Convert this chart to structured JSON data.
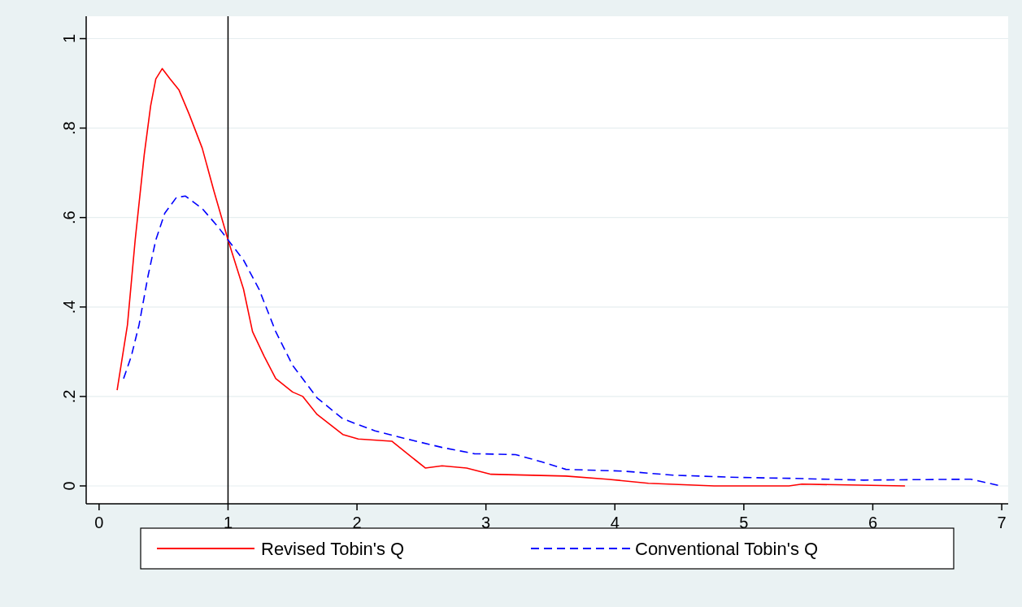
{
  "chart_data": {
    "type": "line",
    "xlim": [
      -0.1,
      7.05
    ],
    "xticks": [
      0,
      1,
      2,
      3,
      4,
      5,
      6,
      7
    ],
    "ylim": [
      -0.04,
      1.05
    ],
    "yticks": [
      {
        "value": 0,
        "label": "0"
      },
      {
        "value": 0.2,
        "label": ".2"
      },
      {
        "value": 0.4,
        "label": ".4"
      },
      {
        "value": 0.6,
        "label": ".6"
      },
      {
        "value": 0.8,
        "label": ".8"
      },
      {
        "value": 1,
        "label": "1"
      }
    ],
    "grid": "y",
    "legend": "bottom",
    "ref_lines": [
      {
        "axis": "x",
        "value": 1,
        "color": "#000000"
      }
    ],
    "series": [
      {
        "name": "Revised Tobin's Q",
        "color": "#ff0000",
        "line_style": "solid",
        "x": [
          0.14,
          0.22,
          0.28,
          0.35,
          0.4,
          0.44,
          0.49,
          0.55,
          0.62,
          0.7,
          0.8,
          0.89,
          1.0,
          1.12,
          1.19,
          1.28,
          1.37,
          1.5,
          1.58,
          1.69,
          1.89,
          2.01,
          2.27,
          2.53,
          2.66,
          2.85,
          3.04,
          3.62,
          3.94,
          4.26,
          4.77,
          5.35,
          5.45,
          6.25
        ],
        "values": [
          0.214,
          0.36,
          0.55,
          0.74,
          0.85,
          0.91,
          0.933,
          0.91,
          0.885,
          0.83,
          0.755,
          0.66,
          0.55,
          0.44,
          0.345,
          0.29,
          0.24,
          0.21,
          0.2,
          0.16,
          0.115,
          0.105,
          0.1,
          0.04,
          0.045,
          0.04,
          0.026,
          0.022,
          0.015,
          0.006,
          0,
          0,
          0.004,
          0
        ]
      },
      {
        "name": "Conventional Tobin's Q",
        "color": "#0000ff",
        "line_style": "dashed",
        "x": [
          0.19,
          0.25,
          0.31,
          0.38,
          0.44,
          0.51,
          0.6,
          0.67,
          0.8,
          0.92,
          1.0,
          1.12,
          1.24,
          1.37,
          1.5,
          1.69,
          1.89,
          2.14,
          2.4,
          2.66,
          2.91,
          3.23,
          3.43,
          3.62,
          4.07,
          4.45,
          4.96,
          5.35,
          5.93,
          6.76,
          6.99
        ],
        "values": [
          0.24,
          0.29,
          0.36,
          0.47,
          0.55,
          0.61,
          0.645,
          0.648,
          0.62,
          0.58,
          0.55,
          0.505,
          0.44,
          0.345,
          0.27,
          0.197,
          0.15,
          0.123,
          0.104,
          0.086,
          0.072,
          0.07,
          0.054,
          0.037,
          0.033,
          0.024,
          0.019,
          0.017,
          0.013,
          0.015,
          0
        ]
      }
    ]
  }
}
